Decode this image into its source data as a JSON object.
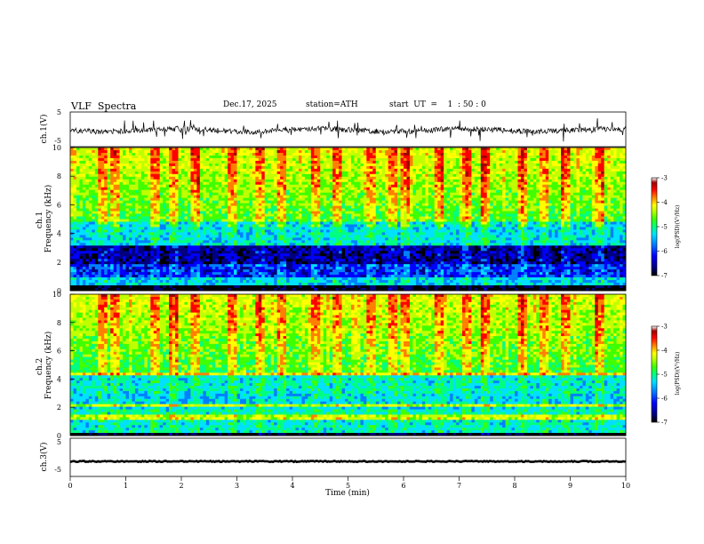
{
  "header": {
    "title": "VLF  Spectra",
    "date": "Dec.17, 2025",
    "station": "station=ATH",
    "start": "start  UT  =    1  : 50 : 0"
  },
  "colors": {
    "colormap": [
      "#000000",
      "#000080",
      "#0000ff",
      "#0080ff",
      "#00e0ff",
      "#00ff80",
      "#40ff00",
      "#c0ff00",
      "#ffff00",
      "#ff8000",
      "#ff0000",
      "#a00000",
      "#ffffff"
    ]
  },
  "chart_data": [
    {
      "type": "line",
      "ylabel": "ch.1(V)",
      "ylim": [
        -5,
        5
      ],
      "yticks": [
        "5",
        "-5"
      ],
      "xlim": [
        0,
        10
      ],
      "note": "noisy waveform around 0 V"
    },
    {
      "type": "heatmap",
      "ylabel": "ch.1\nFrequency (kHz)",
      "ylim": [
        0,
        10
      ],
      "yticks": [
        "0",
        "2",
        "4",
        "6",
        "8",
        "10"
      ],
      "xlim": [
        0,
        10
      ],
      "colorbar": {
        "label": "log(PSD)(V²/Hz)",
        "range": [
          -7,
          -3
        ],
        "ticks": [
          "-3",
          "-4",
          "-5",
          "-6",
          "-7"
        ]
      }
    },
    {
      "type": "heatmap",
      "ylabel": "ch.2\nFrequency (kHz)",
      "ylim": [
        0,
        10
      ],
      "yticks": [
        "0",
        "2",
        "4",
        "6",
        "8",
        "10"
      ],
      "xlim": [
        0,
        10
      ],
      "colorbar": {
        "label": "log(PSD)(V²/Hz)",
        "range": [
          -7,
          -3
        ],
        "ticks": [
          "-3",
          "-4",
          "-5",
          "-6",
          "-7"
        ]
      }
    },
    {
      "type": "line",
      "ylabel": "ch.3(V)",
      "ylim": [
        -5,
        5
      ],
      "yticks": [
        "5",
        "-5"
      ],
      "xlim": [
        0,
        10
      ],
      "xlabel": "Time  (min)",
      "xticks": [
        "0",
        "1",
        "2",
        "3",
        "4",
        "5",
        "6",
        "7",
        "8",
        "9",
        "10"
      ],
      "note": "near-constant signal at about -2 V"
    }
  ]
}
